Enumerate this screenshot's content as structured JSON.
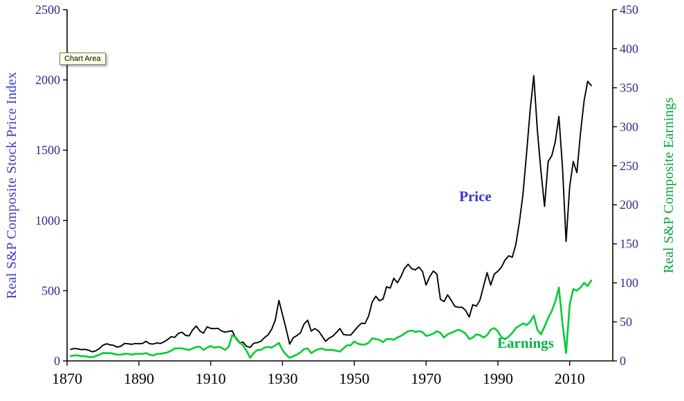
{
  "labels": {
    "tooltip": "Chart Area",
    "price_annotation": "Price",
    "earnings_annotation": "Earnings",
    "price_annotation_color": "#3434d8",
    "earnings_annotation_color": "#00b33c"
  },
  "chart_data": {
    "type": "line",
    "title": "",
    "x_axis": {
      "label": "",
      "ticks": [
        1870,
        1890,
        1910,
        1930,
        1950,
        1970,
        1990,
        2010
      ],
      "range": [
        1870,
        2022
      ],
      "tick_color": "#000000"
    },
    "left_axis": {
      "label": "Real S&P Composite Stock Price Index",
      "ticks": [
        0,
        500,
        1000,
        1500,
        2000,
        2500
      ],
      "range": [
        0,
        2500
      ],
      "color": "#3b3bd1",
      "tick_color": "#2b2b8f"
    },
    "right_axis": {
      "label": "Real S&P Composite Earnings",
      "ticks": [
        0,
        50,
        100,
        150,
        200,
        250,
        300,
        350,
        400,
        450
      ],
      "range": [
        0,
        450
      ],
      "color": "#00a838",
      "tick_color": "#2b2b8f"
    },
    "year_start": 1871,
    "series": [
      {
        "name": "Price",
        "axis": "left",
        "color": "#000000",
        "values": [
          82,
          88,
          85,
          80,
          82,
          76,
          65,
          72,
          88,
          112,
          122,
          114,
          110,
          98,
          105,
          124,
          122,
          118,
          124,
          122,
          124,
          140,
          122,
          120,
          128,
          124,
          136,
          152,
          172,
          168,
          196,
          204,
          182,
          178,
          222,
          248,
          212,
          198,
          242,
          232,
          230,
          232,
          214,
          204,
          210,
          214,
          160,
          128,
          134,
          104,
          96,
          126,
          130,
          140,
          166,
          186,
          226,
          292,
          430,
          330,
          230,
          120,
          165,
          180,
          200,
          262,
          290,
          212,
          230,
          214,
          178,
          140,
          162,
          176,
          202,
          230,
          188,
          184,
          184,
          214,
          244,
          268,
          266,
          320,
          420,
          460,
          428,
          440,
          528,
          518,
          588,
          556,
          600,
          658,
          688,
          656,
          648,
          668,
          636,
          540,
          600,
          640,
          618,
          438,
          422,
          470,
          432,
          388,
          382,
          382,
          360,
          312,
          400,
          390,
          432,
          530,
          628,
          540,
          618,
          638,
          668,
          718,
          748,
          738,
          828,
          988,
          1188,
          1478,
          1788,
          2030,
          1640,
          1348,
          1100,
          1420,
          1460,
          1560,
          1740,
          1380,
          850,
          1240,
          1420,
          1340,
          1620,
          1850,
          1990,
          1960
        ]
      },
      {
        "name": "Earnings",
        "axis": "right",
        "color": "#00cc33",
        "values": [
          6,
          7,
          7,
          6,
          6,
          5,
          5,
          6,
          8,
          10,
          10,
          10,
          9,
          8,
          8,
          9,
          9,
          8,
          9,
          9,
          9,
          10,
          8,
          7,
          9,
          9,
          10,
          11,
          13,
          16,
          16,
          16,
          15,
          14,
          16,
          18,
          18,
          14,
          17,
          19,
          17,
          18,
          17,
          14,
          18,
          33,
          30,
          24,
          20,
          13,
          4,
          10,
          14,
          14,
          17,
          18,
          17,
          20,
          23,
          14,
          8,
          4,
          6,
          8,
          11,
          15,
          16,
          10,
          13,
          15,
          16,
          14,
          14,
          14,
          13,
          12,
          16,
          20,
          20,
          25,
          22,
          21,
          21,
          23,
          29,
          28,
          27,
          24,
          28,
          28,
          27,
          30,
          32,
          35,
          38,
          39,
          37,
          38,
          37,
          32,
          33,
          35,
          38,
          36,
          30,
          34,
          36,
          38,
          40,
          38,
          35,
          28,
          30,
          34,
          33,
          30,
          33,
          40,
          42,
          38,
          30,
          28,
          31,
          36,
          42,
          45,
          48,
          46,
          50,
          58,
          40,
          34,
          44,
          55,
          64,
          76,
          94,
          48,
          10,
          72,
          92,
          90,
          94,
          100,
          96,
          103
        ]
      }
    ]
  }
}
